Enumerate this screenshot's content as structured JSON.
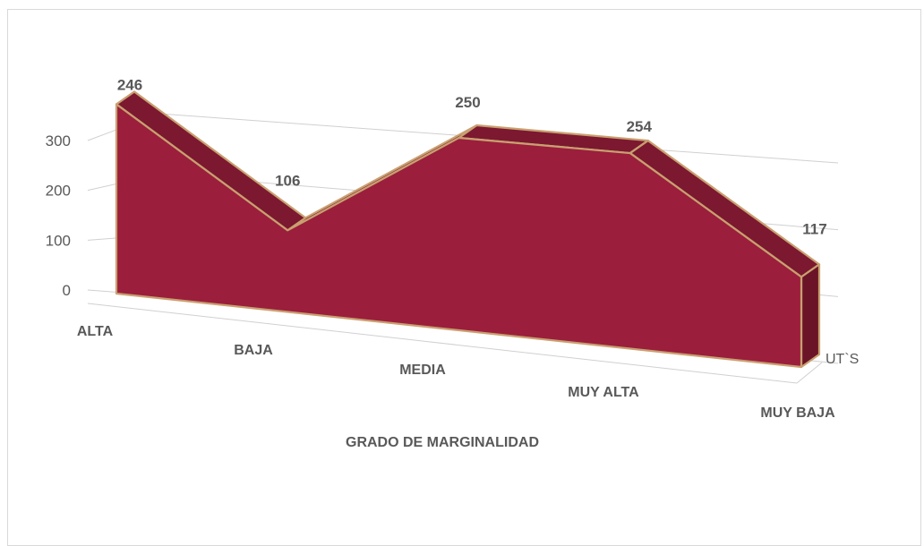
{
  "colors": {
    "front": "#9b1e3c",
    "top": "#7c1830",
    "side": "#6b1428",
    "edge": "#c9a070",
    "grid": "#d0d0d0",
    "text": "#595959"
  },
  "chart_data": {
    "type": "area",
    "chart_style": "3d-area",
    "categories": [
      "ALTA",
      "BAJA",
      "MEDIA",
      "MUY ALTA",
      "MUY BAJA"
    ],
    "series": [
      {
        "name": "UT`S",
        "values": [
          246,
          106,
          250,
          254,
          117
        ]
      }
    ],
    "xlabel": "GRADO DE MARGINALIDAD",
    "ylabel": "",
    "ylim": [
      0,
      300
    ],
    "yticks": [
      0,
      100,
      200,
      300
    ],
    "grid": true,
    "depth_axis_label": "UT`S"
  }
}
